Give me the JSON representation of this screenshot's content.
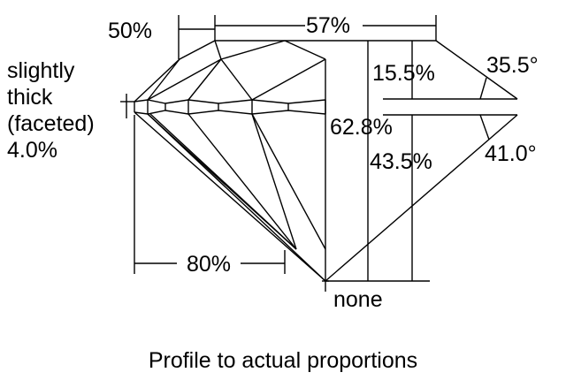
{
  "labels": {
    "crown_angle_width": "50%",
    "table": "57%",
    "girdle_line1": "slightly",
    "girdle_line2": "thick",
    "girdle_line3": "(faceted)",
    "girdle_percent": "4.0%",
    "crown_height": "15.5%",
    "crown_angle": "35.5°",
    "total_depth": "62.8%",
    "pavilion_depth": "43.5%",
    "pavilion_angle": "41.0°",
    "lower_half": "80%",
    "culet": "none"
  },
  "caption": "Profile to actual proportions"
}
